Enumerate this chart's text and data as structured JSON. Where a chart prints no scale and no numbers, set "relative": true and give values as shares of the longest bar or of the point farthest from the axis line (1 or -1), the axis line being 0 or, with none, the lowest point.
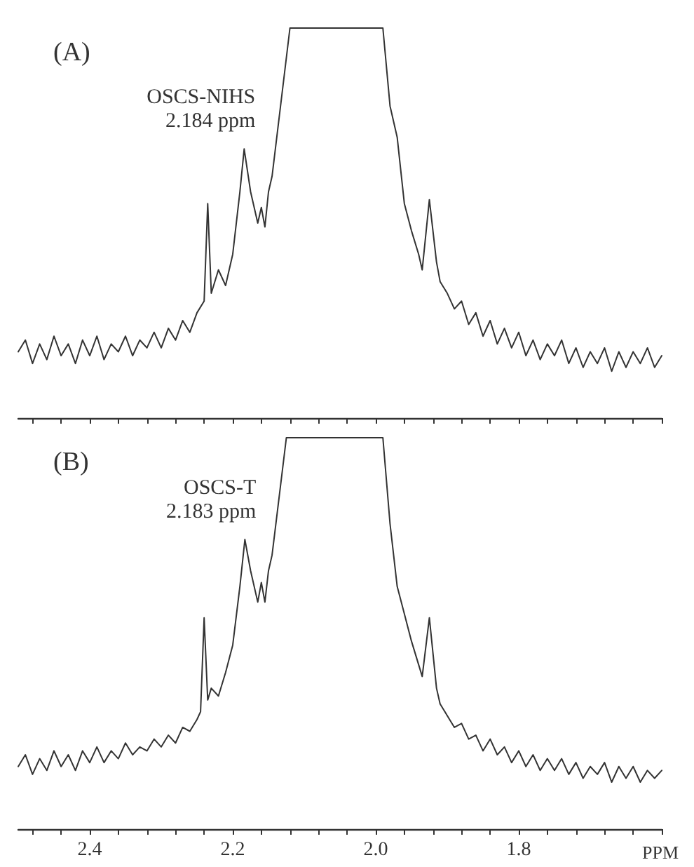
{
  "chart_data": [
    {
      "type": "line",
      "relative": true,
      "line_style": "solid",
      "marker": "none",
      "tick_labels": false,
      "xlim": [
        2.5,
        1.6
      ],
      "xticks": [
        {
          "value": 2.48,
          "label": null
        },
        {
          "value": 2.44,
          "label": null
        },
        {
          "value": 2.4,
          "label": null
        },
        {
          "value": 2.36,
          "label": null
        },
        {
          "value": 2.32,
          "label": null
        },
        {
          "value": 2.28,
          "label": null
        },
        {
          "value": 2.24,
          "label": null
        },
        {
          "value": 2.2,
          "label": null
        },
        {
          "value": 2.16,
          "label": null
        },
        {
          "value": 2.12,
          "label": null
        },
        {
          "value": 2.08,
          "label": null
        },
        {
          "value": 2.04,
          "label": null
        },
        {
          "value": 2.0,
          "label": null
        },
        {
          "value": 1.96,
          "label": null
        },
        {
          "value": 1.92,
          "label": null
        },
        {
          "value": 1.88,
          "label": null
        },
        {
          "value": 1.84,
          "label": null
        },
        {
          "value": 1.8,
          "label": null
        },
        {
          "value": 1.76,
          "label": null
        },
        {
          "value": 1.72,
          "label": null
        },
        {
          "value": 1.68,
          "label": null
        },
        {
          "value": 1.64,
          "label": null
        },
        {
          "value": 1.6,
          "label": null
        }
      ],
      "annotations": [
        "(A)",
        "OSCS-NIHS",
        {
          "text": "2.184 ppm",
          "x": 2.184,
          "y": 0.69
        }
      ],
      "series": [
        {
          "color": "#333333",
          "x": [
            2.5,
            2.49,
            2.48,
            2.47,
            2.46,
            2.45,
            2.44,
            2.43,
            2.42,
            2.41,
            2.4,
            2.39,
            2.38,
            2.37,
            2.36,
            2.35,
            2.34,
            2.33,
            2.32,
            2.31,
            2.3,
            2.29,
            2.28,
            2.27,
            2.26,
            2.25,
            2.24,
            2.235,
            2.23,
            2.22,
            2.21,
            2.2,
            2.19,
            2.184,
            2.175,
            2.165,
            2.16,
            2.155,
            2.15,
            2.145,
            2.12,
            1.99,
            1.98,
            1.97,
            1.96,
            1.95,
            1.94,
            1.935,
            1.925,
            1.915,
            1.91,
            1.9,
            1.89,
            1.88,
            1.87,
            1.86,
            1.85,
            1.84,
            1.83,
            1.82,
            1.81,
            1.8,
            1.79,
            1.78,
            1.77,
            1.76,
            1.75,
            1.74,
            1.73,
            1.72,
            1.71,
            1.7,
            1.69,
            1.68,
            1.67,
            1.66,
            1.65,
            1.64,
            1.63,
            1.62,
            1.61,
            1.6
          ],
          "values": [
            0.17,
            0.2,
            0.14,
            0.19,
            0.15,
            0.21,
            0.16,
            0.19,
            0.14,
            0.2,
            0.16,
            0.21,
            0.15,
            0.19,
            0.17,
            0.21,
            0.16,
            0.2,
            0.18,
            0.22,
            0.18,
            0.23,
            0.2,
            0.25,
            0.22,
            0.27,
            0.3,
            0.55,
            0.32,
            0.38,
            0.34,
            0.42,
            0.58,
            0.69,
            0.58,
            0.5,
            0.54,
            0.49,
            0.58,
            0.62,
            1,
            1,
            0.8,
            0.72,
            0.55,
            0.48,
            0.42,
            0.38,
            0.56,
            0.4,
            0.35,
            0.32,
            0.28,
            0.3,
            0.24,
            0.27,
            0.21,
            0.25,
            0.19,
            0.23,
            0.18,
            0.22,
            0.16,
            0.2,
            0.15,
            0.19,
            0.16,
            0.2,
            0.14,
            0.18,
            0.13,
            0.17,
            0.14,
            0.18,
            0.12,
            0.17,
            0.13,
            0.17,
            0.14,
            0.18,
            0.13,
            0.16
          ]
        }
      ]
    },
    {
      "type": "line",
      "relative": true,
      "line_style": "solid",
      "marker": "none",
      "tick_labels": "x",
      "xlabel": "PPM",
      "xlim": [
        2.5,
        1.6
      ],
      "xticks": [
        {
          "value": 2.48,
          "label": null
        },
        {
          "value": 2.44,
          "label": null
        },
        2.4,
        {
          "value": 2.36,
          "label": null
        },
        {
          "value": 2.32,
          "label": null
        },
        {
          "value": 2.28,
          "label": null
        },
        {
          "value": 2.24,
          "label": null
        },
        2.2,
        {
          "value": 2.16,
          "label": null
        },
        {
          "value": 2.12,
          "label": null
        },
        {
          "value": 2.08,
          "label": null
        },
        {
          "value": 2.04,
          "label": null
        },
        {
          "value": 2.0,
          "label": "2.0"
        },
        {
          "value": 1.96,
          "label": null
        },
        {
          "value": 1.92,
          "label": null
        },
        {
          "value": 1.88,
          "label": null
        },
        {
          "value": 1.84,
          "label": null
        },
        1.8,
        {
          "value": 1.76,
          "label": null
        },
        {
          "value": 1.72,
          "label": null
        },
        {
          "value": 1.68,
          "label": null
        },
        {
          "value": 1.64,
          "label": null
        },
        {
          "value": 1.6,
          "label": null
        }
      ],
      "annotations": [
        "(B)",
        "OSCS-T",
        {
          "text": "2.183 ppm",
          "x": 2.183,
          "y": 0.74
        }
      ],
      "series": [
        {
          "color": "#333333",
          "x": [
            2.5,
            2.49,
            2.48,
            2.47,
            2.46,
            2.45,
            2.44,
            2.43,
            2.42,
            2.41,
            2.4,
            2.39,
            2.38,
            2.37,
            2.36,
            2.35,
            2.34,
            2.33,
            2.32,
            2.31,
            2.3,
            2.29,
            2.28,
            2.27,
            2.26,
            2.25,
            2.245,
            2.24,
            2.235,
            2.23,
            2.22,
            2.21,
            2.2,
            2.19,
            2.183,
            2.175,
            2.165,
            2.16,
            2.155,
            2.15,
            2.145,
            2.125,
            1.99,
            1.98,
            1.97,
            1.96,
            1.95,
            1.94,
            1.935,
            1.925,
            1.915,
            1.91,
            1.9,
            1.89,
            1.88,
            1.87,
            1.86,
            1.85,
            1.84,
            1.83,
            1.82,
            1.81,
            1.8,
            1.79,
            1.78,
            1.77,
            1.76,
            1.75,
            1.74,
            1.73,
            1.72,
            1.71,
            1.7,
            1.69,
            1.68,
            1.67,
            1.66,
            1.65,
            1.64,
            1.63,
            1.62,
            1.61,
            1.6
          ],
          "values": [
            0.16,
            0.19,
            0.14,
            0.18,
            0.15,
            0.2,
            0.16,
            0.19,
            0.15,
            0.2,
            0.17,
            0.21,
            0.17,
            0.2,
            0.18,
            0.22,
            0.19,
            0.21,
            0.2,
            0.23,
            0.21,
            0.24,
            0.22,
            0.26,
            0.25,
            0.28,
            0.3,
            0.54,
            0.33,
            0.36,
            0.34,
            0.4,
            0.47,
            0.62,
            0.74,
            0.66,
            0.58,
            0.63,
            0.58,
            0.66,
            0.7,
            1,
            1,
            0.78,
            0.62,
            0.55,
            0.48,
            0.42,
            0.39,
            0.54,
            0.36,
            0.32,
            0.29,
            0.26,
            0.27,
            0.23,
            0.24,
            0.2,
            0.23,
            0.19,
            0.21,
            0.17,
            0.2,
            0.16,
            0.19,
            0.15,
            0.18,
            0.15,
            0.18,
            0.14,
            0.17,
            0.13,
            0.16,
            0.14,
            0.17,
            0.12,
            0.16,
            0.13,
            0.16,
            0.12,
            0.15,
            0.13,
            0.15
          ]
        }
      ]
    }
  ]
}
